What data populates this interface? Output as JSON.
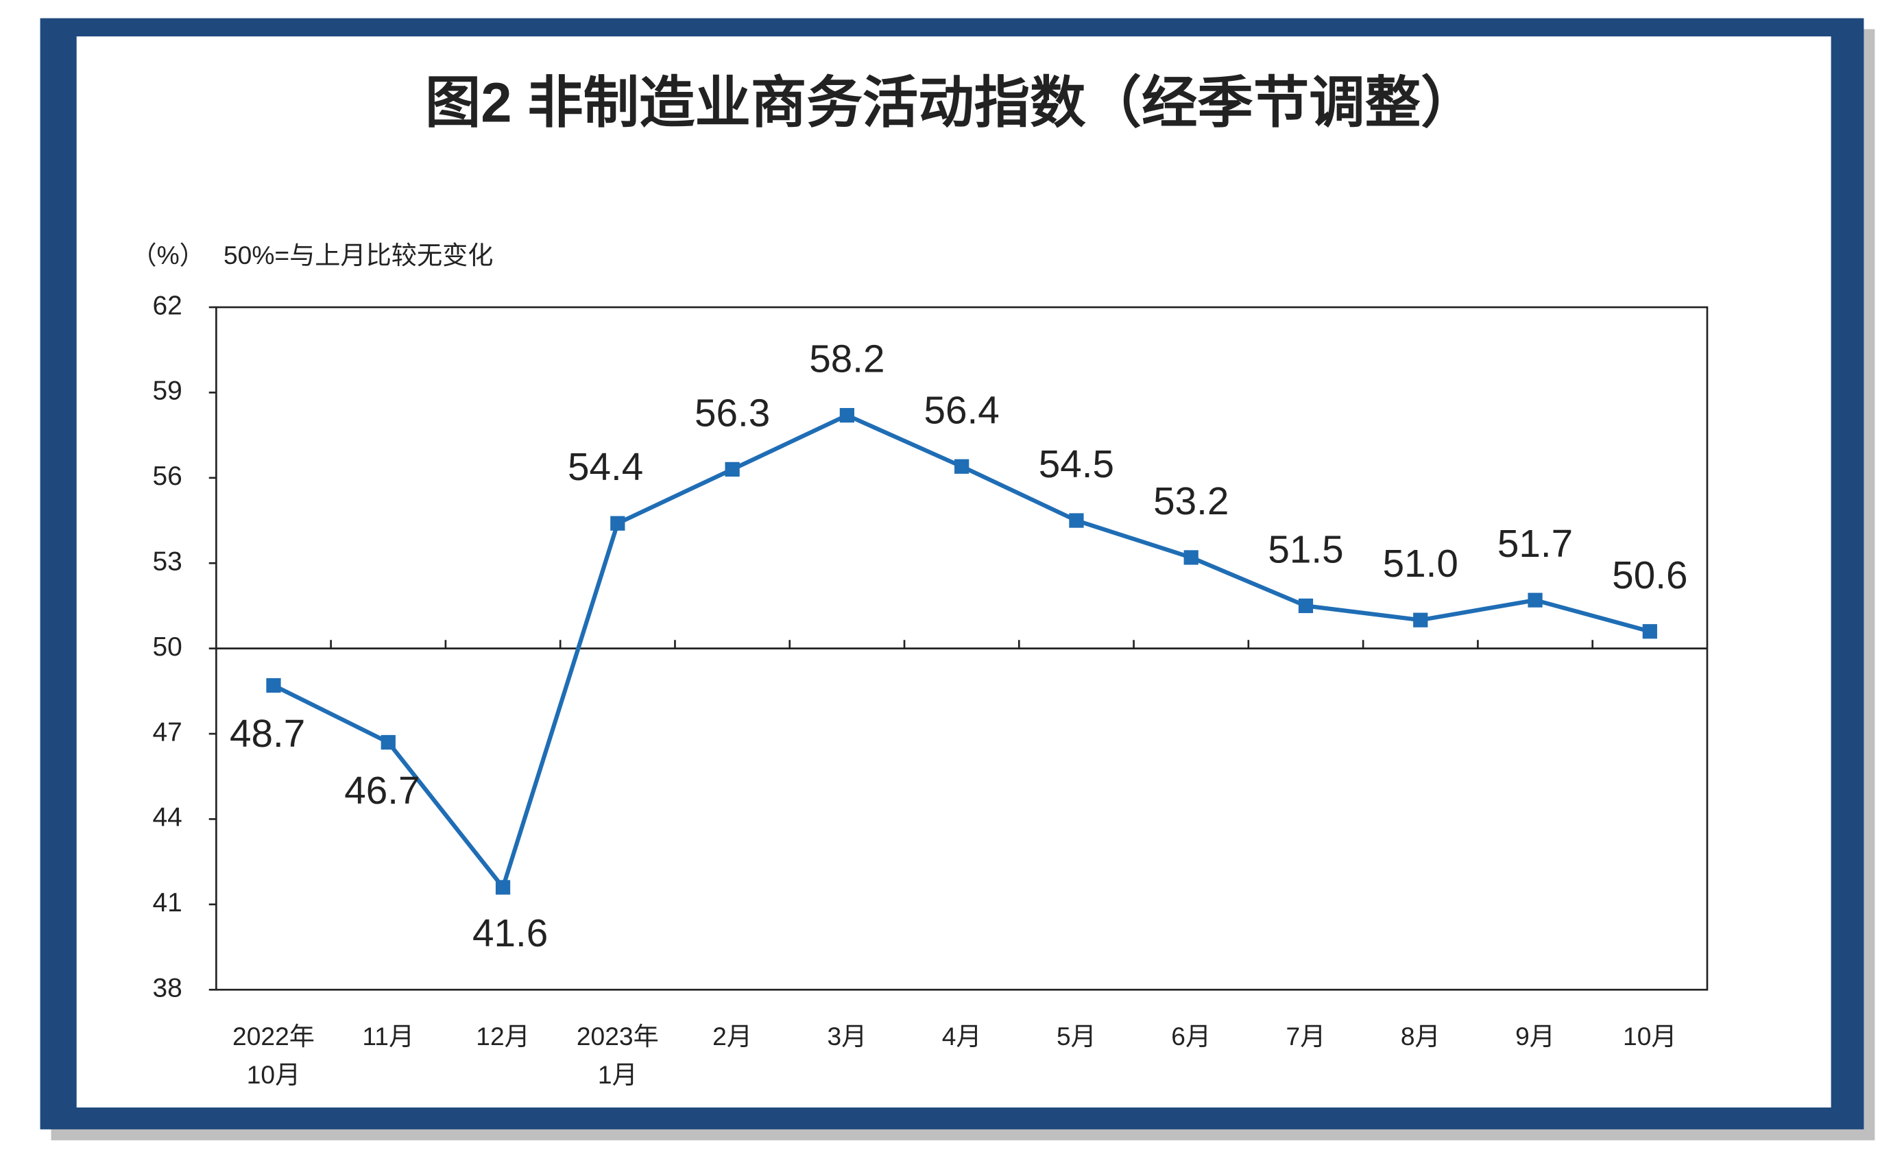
{
  "chart_data": {
    "type": "line",
    "title": "图2  非制造业商务活动指数（经季节调整）",
    "y_label": "（%）",
    "annotation": "50%=与上月比较无变化",
    "categories": [
      "2022年\n10月",
      "11月",
      "12月",
      "2023年\n1月",
      "2月",
      "3月",
      "4月",
      "5月",
      "6月",
      "7月",
      "8月",
      "9月",
      "10月"
    ],
    "values": [
      48.7,
      46.7,
      41.6,
      54.4,
      56.3,
      58.2,
      56.4,
      54.5,
      53.2,
      51.5,
      51.0,
      51.7,
      50.6
    ],
    "value_labels": [
      "48.7",
      "46.7",
      "41.6",
      "54.4",
      "56.3",
      "58.2",
      "56.4",
      "54.5",
      "53.2",
      "51.5",
      "51.0",
      "51.7",
      "50.6"
    ],
    "color": "#1f6db5",
    "reference_line": 50,
    "ylim": [
      38,
      62
    ],
    "yticks": [
      38,
      41,
      44,
      47,
      50,
      53,
      56,
      59,
      62
    ],
    "grid": false
  }
}
